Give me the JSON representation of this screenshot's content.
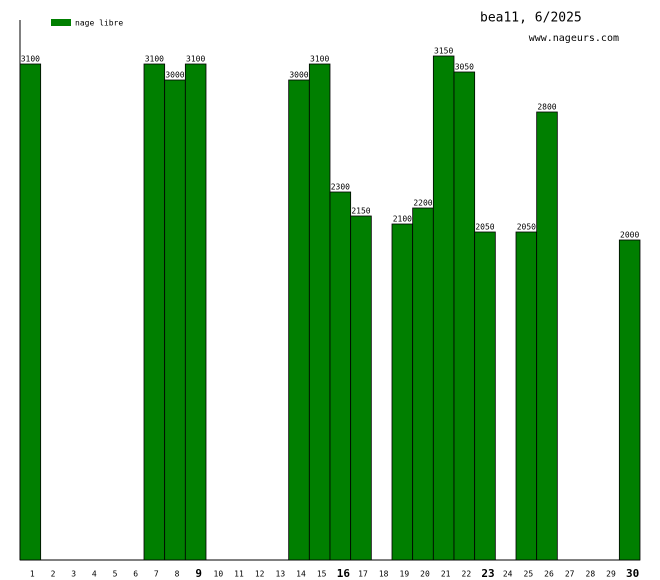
{
  "chart_data": {
    "type": "bar",
    "title": "bea11, 6/2025",
    "subtitle": "www.nageurs.com",
    "categories": [
      "1",
      "2",
      "3",
      "4",
      "5",
      "6",
      "7",
      "8",
      "9",
      "10",
      "11",
      "12",
      "13",
      "14",
      "15",
      "16",
      "17",
      "18",
      "19",
      "20",
      "21",
      "22",
      "23",
      "24",
      "25",
      "26",
      "27",
      "28",
      "29",
      "30"
    ],
    "series": [
      {
        "name": "nage libre",
        "color": "#007f00",
        "values": [
          3100,
          null,
          null,
          null,
          null,
          null,
          3100,
          3000,
          3100,
          null,
          null,
          null,
          null,
          3000,
          3100,
          2300,
          2150,
          null,
          2100,
          2200,
          3150,
          3050,
          2050,
          null,
          2050,
          2800,
          null,
          null,
          null,
          2000
        ]
      }
    ],
    "emphasized_categories": [
      "9",
      "16",
      "23",
      "30"
    ],
    "ylim": [
      0,
      3375
    ],
    "legend": "top-left"
  }
}
